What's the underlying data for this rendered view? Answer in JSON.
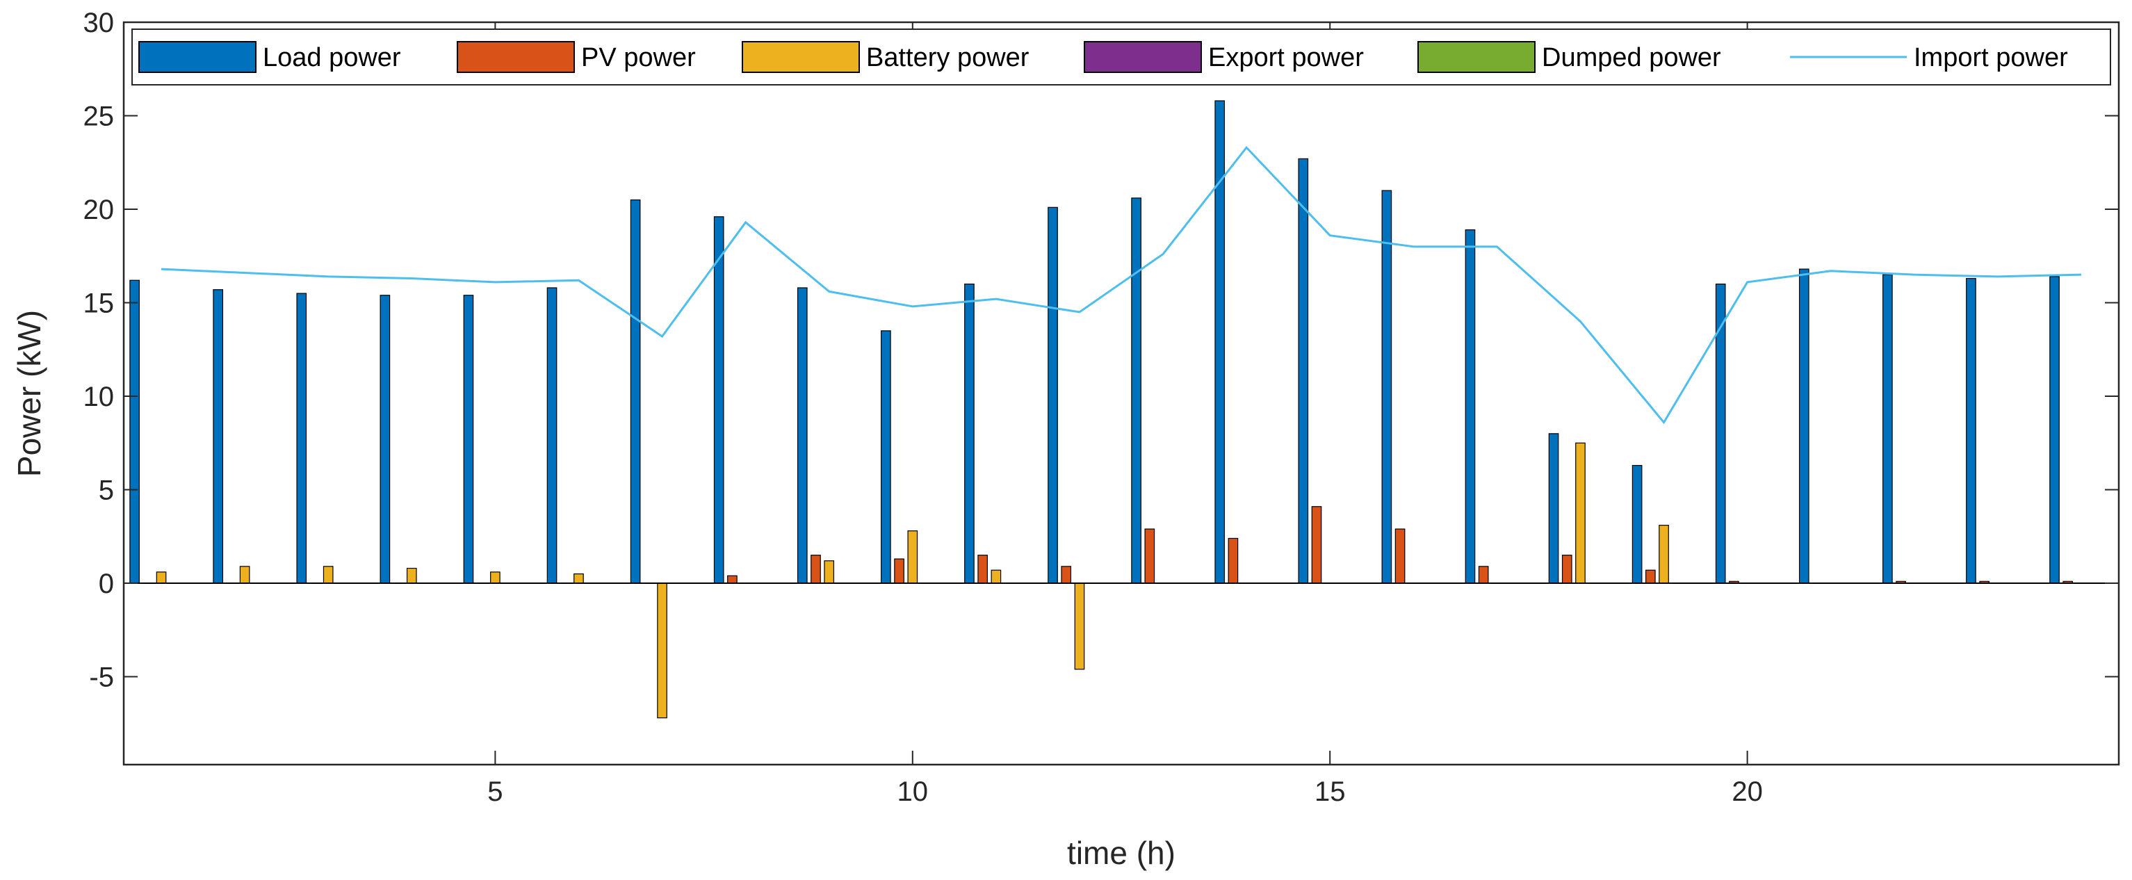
{
  "chart_data": {
    "type": "bar",
    "title": "",
    "xlabel": "time (h)",
    "ylabel": "Power (kW)",
    "xlim": [
      0.55,
      24.45
    ],
    "ylim": [
      -9.7,
      30
    ],
    "xticks": [
      5,
      10,
      15,
      20
    ],
    "yticks": [
      -5,
      0,
      5,
      10,
      15,
      20,
      25,
      30
    ],
    "x": [
      1,
      2,
      3,
      4,
      5,
      6,
      7,
      8,
      9,
      10,
      11,
      12,
      13,
      14,
      15,
      16,
      17,
      18,
      19,
      20,
      21,
      22,
      23,
      24
    ],
    "series": [
      {
        "name": "Load power",
        "kind": "bar",
        "color": "#0072BD",
        "values": [
          16.2,
          15.7,
          15.5,
          15.4,
          15.4,
          15.8,
          20.5,
          19.6,
          15.8,
          13.5,
          16.0,
          20.1,
          20.6,
          25.8,
          22.7,
          21.0,
          18.9,
          8.0,
          6.3,
          16.0,
          16.8,
          16.5,
          16.3,
          16.4
        ]
      },
      {
        "name": "PV power",
        "kind": "bar",
        "color": "#D95319",
        "values": [
          0,
          0,
          0,
          0,
          0,
          0,
          0,
          0.4,
          1.5,
          1.3,
          1.5,
          0.9,
          2.9,
          2.4,
          4.1,
          2.9,
          0.9,
          1.5,
          0.7,
          0.1,
          0,
          0.1,
          0.1,
          0.1
        ]
      },
      {
        "name": "Battery power",
        "kind": "bar",
        "color": "#EDB120",
        "values": [
          0.6,
          0.9,
          0.9,
          0.8,
          0.6,
          0.5,
          -7.2,
          0,
          1.2,
          2.8,
          0.7,
          -4.6,
          0,
          0,
          0,
          0,
          0,
          7.5,
          3.1,
          0,
          0,
          0,
          0,
          0
        ]
      },
      {
        "name": "Export power",
        "kind": "bar",
        "color": "#7E2F8E",
        "values": [
          0,
          0,
          0,
          0,
          0,
          0,
          0,
          0,
          0,
          0,
          0,
          0,
          0,
          0,
          0,
          0,
          0,
          0,
          0,
          0,
          0,
          0,
          0,
          0
        ]
      },
      {
        "name": "Dumped power",
        "kind": "bar",
        "color": "#77AC30",
        "values": [
          0,
          0,
          0,
          0,
          0,
          0,
          0,
          0,
          0,
          0,
          0,
          0,
          0,
          0,
          0,
          0,
          0,
          0,
          0,
          0,
          0,
          0,
          0,
          0
        ]
      },
      {
        "name": "Import power",
        "kind": "line",
        "color": "#4DBEEE",
        "values": [
          16.8,
          16.6,
          16.4,
          16.3,
          16.1,
          16.2,
          13.2,
          19.3,
          15.6,
          14.8,
          15.2,
          14.5,
          17.6,
          23.3,
          18.6,
          18.0,
          18.0,
          14.0,
          8.6,
          16.1,
          16.7,
          16.5,
          16.4,
          16.5
        ]
      }
    ],
    "legend": {
      "placement": "top",
      "orientation": "horizontal"
    },
    "grid": false
  }
}
